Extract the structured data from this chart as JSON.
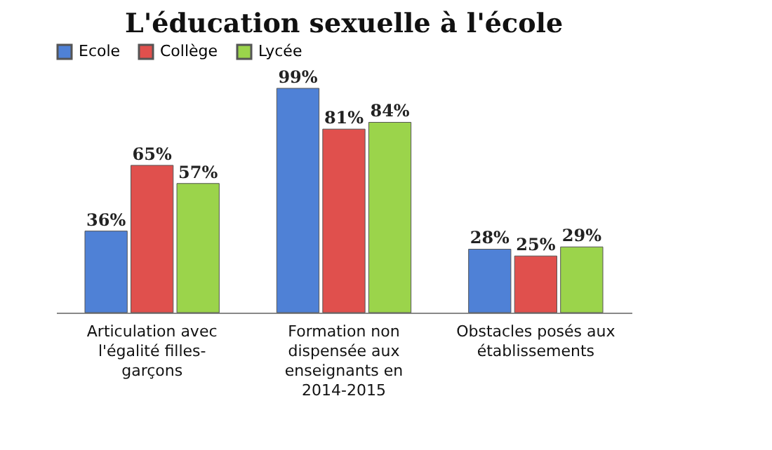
{
  "chart_data": {
    "type": "bar",
    "title": "L'éducation sexuelle à l'école",
    "categories": [
      "Articulation avec l'égalité filles-garçons",
      "Formation non dispensée aux enseignants en 2014-2015",
      "Obstacles posés aux établissements"
    ],
    "series": [
      {
        "name": "Ecole",
        "color": "#4f81d6",
        "values": [
          36,
          99,
          28
        ],
        "value_labels": [
          "36%",
          "99%",
          "28%"
        ]
      },
      {
        "name": "Collège",
        "color": "#e0504d",
        "values": [
          65,
          81,
          25
        ],
        "value_labels": [
          "65%",
          "81%",
          "25%"
        ]
      },
      {
        "name": "Lycée",
        "color": "#9bd44b",
        "values": [
          57,
          84,
          29
        ],
        "value_labels": [
          "57%",
          "84%",
          "29%"
        ]
      }
    ],
    "legend": "top"
  }
}
